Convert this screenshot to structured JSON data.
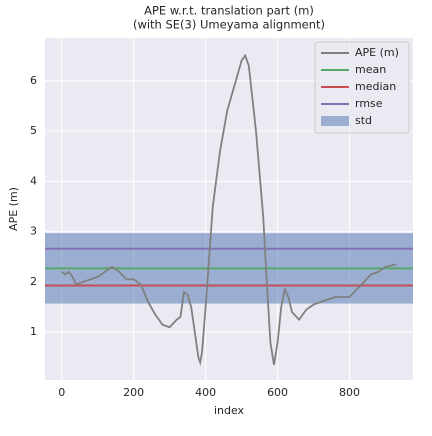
{
  "chart_data": {
    "type": "line",
    "title": "APE w.r.t. translation part (m)",
    "subtitle": "(with SE(3) Umeyama alignment)",
    "x_label": "index",
    "y_label": "APE (m)",
    "x": [
      0,
      10,
      20,
      30,
      40,
      60,
      80,
      100,
      120,
      140,
      160,
      180,
      200,
      220,
      240,
      260,
      280,
      300,
      320,
      330,
      340,
      350,
      360,
      370,
      380,
      385,
      390,
      400,
      410,
      420,
      440,
      460,
      480,
      500,
      510,
      520,
      540,
      560,
      570,
      580,
      590,
      600,
      610,
      620,
      630,
      640,
      660,
      680,
      700,
      720,
      740,
      760,
      780,
      800,
      820,
      840,
      860,
      880,
      900,
      930
    ],
    "series": [
      {
        "name": "APE (m)",
        "color": "#808080",
        "values": [
          2.2,
          2.15,
          2.2,
          2.1,
          1.95,
          2.0,
          2.05,
          2.1,
          2.2,
          2.3,
          2.2,
          2.05,
          2.05,
          1.95,
          1.6,
          1.35,
          1.15,
          1.1,
          1.25,
          1.3,
          1.8,
          1.75,
          1.5,
          1.0,
          0.5,
          0.4,
          0.6,
          1.5,
          2.5,
          3.5,
          4.6,
          5.4,
          5.9,
          6.4,
          6.5,
          6.3,
          5.0,
          3.3,
          2.0,
          0.8,
          0.35,
          0.8,
          1.5,
          1.85,
          1.7,
          1.4,
          1.25,
          1.45,
          1.55,
          1.6,
          1.65,
          1.7,
          1.7,
          1.7,
          1.85,
          2.0,
          2.15,
          2.2,
          2.3,
          2.35
        ]
      }
    ],
    "stats": [
      {
        "name": "mean",
        "color": "#55a868",
        "value": 2.27
      },
      {
        "name": "median",
        "color": "#c44e52",
        "value": 1.93
      },
      {
        "name": "rmse",
        "color": "#8172b2",
        "value": 2.66
      }
    ],
    "std": {
      "name": "std",
      "color": "#4c72b0",
      "value": 0.7
    },
    "xlim": [
      -46.5,
      976.5
    ],
    "xticks": [
      0,
      200,
      400,
      600,
      800
    ],
    "ylim": [
      0.05,
      6.85
    ],
    "yticks": [
      1,
      2,
      3,
      4,
      5,
      6
    ],
    "grid": true,
    "legend": "upper right"
  }
}
